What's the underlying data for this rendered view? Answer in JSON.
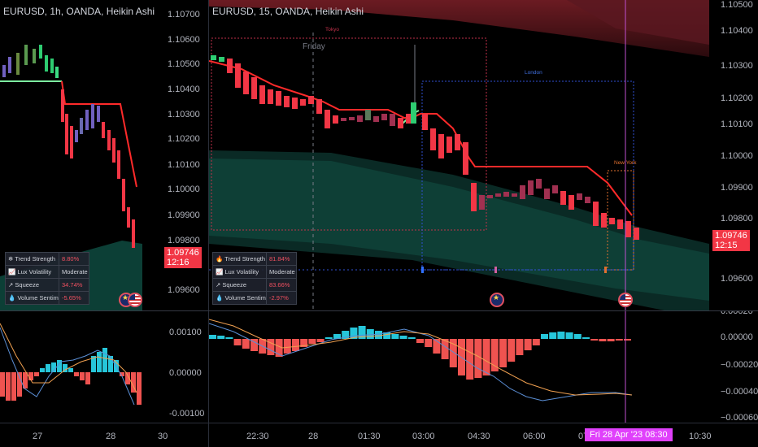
{
  "left_chart": {
    "title": "EURUSD, 1h, OANDA, Heikin Ashi",
    "price_axis": [
      "1.10700",
      "1.10600",
      "1.10500",
      "1.10400",
      "1.10300",
      "1.10200",
      "1.10100",
      "1.10000",
      "1.09900",
      "1.09800",
      "1.09600"
    ],
    "last_price": "1.09746",
    "countdown": "12:16",
    "indicator_axis": [
      "0.00100",
      "0.00000",
      "-0.00100"
    ],
    "time_axis": [
      "27",
      "28",
      "30"
    ],
    "table": [
      {
        "icon": "❄",
        "label": "Trend Strength",
        "value": "8.80%",
        "color": "#f05060"
      },
      {
        "icon": "📈",
        "label": "Lux Volatility",
        "value": "Moderate",
        "color": "#d1d4dc"
      },
      {
        "icon": "↗",
        "label": "Squeeze",
        "value": "34.74%",
        "color": "#f05060"
      },
      {
        "icon": "💧",
        "label": "Volume Sentiment",
        "value": "-5.65%",
        "color": "#f05060"
      }
    ]
  },
  "right_chart": {
    "title": "EURUSD, 15, OANDA, Heikin Ashi",
    "price_axis": [
      "1.10500",
      "1.10400",
      "1.10300",
      "1.10200",
      "1.10100",
      "1.10000",
      "1.09900",
      "1.09800",
      "1.09600"
    ],
    "last_price": "1.09746",
    "countdown": "12:15",
    "indicator_axis": [
      "0.00020",
      "0.00000",
      "−0.00020",
      "−0.00040",
      "−0.00060"
    ],
    "time_axis": [
      "22:30",
      "28",
      "01:30",
      "03:00",
      "04:30",
      "06:00",
      "07",
      "10:30"
    ],
    "crosshair_date": "Fri 28 Apr '23   08:30",
    "day_label": "Friday",
    "sessions": {
      "tokyo": "Tokyo",
      "london": "London",
      "newyork": "New York"
    },
    "table": [
      {
        "icon": "🔥",
        "label": "Trend Strength",
        "value": "81.84%",
        "color": "#f05060"
      },
      {
        "icon": "📈",
        "label": "Lux Volatility",
        "value": "Moderate",
        "color": "#d1d4dc"
      },
      {
        "icon": "↗",
        "label": "Squeeze",
        "value": "83.66%",
        "color": "#f05060"
      },
      {
        "icon": "💧",
        "label": "Volume Sentiment",
        "value": "-2.97%",
        "color": "#f05060"
      }
    ]
  },
  "colors": {
    "bull": "#22c55e",
    "bear": "#f23645",
    "trend_line": "#ff2a2a",
    "cloud": "#0c3f36",
    "hist_pos": "#26c6da",
    "hist_neg": "#ef5350",
    "macd": "#5b8fd6",
    "signal": "#f0a050"
  }
}
